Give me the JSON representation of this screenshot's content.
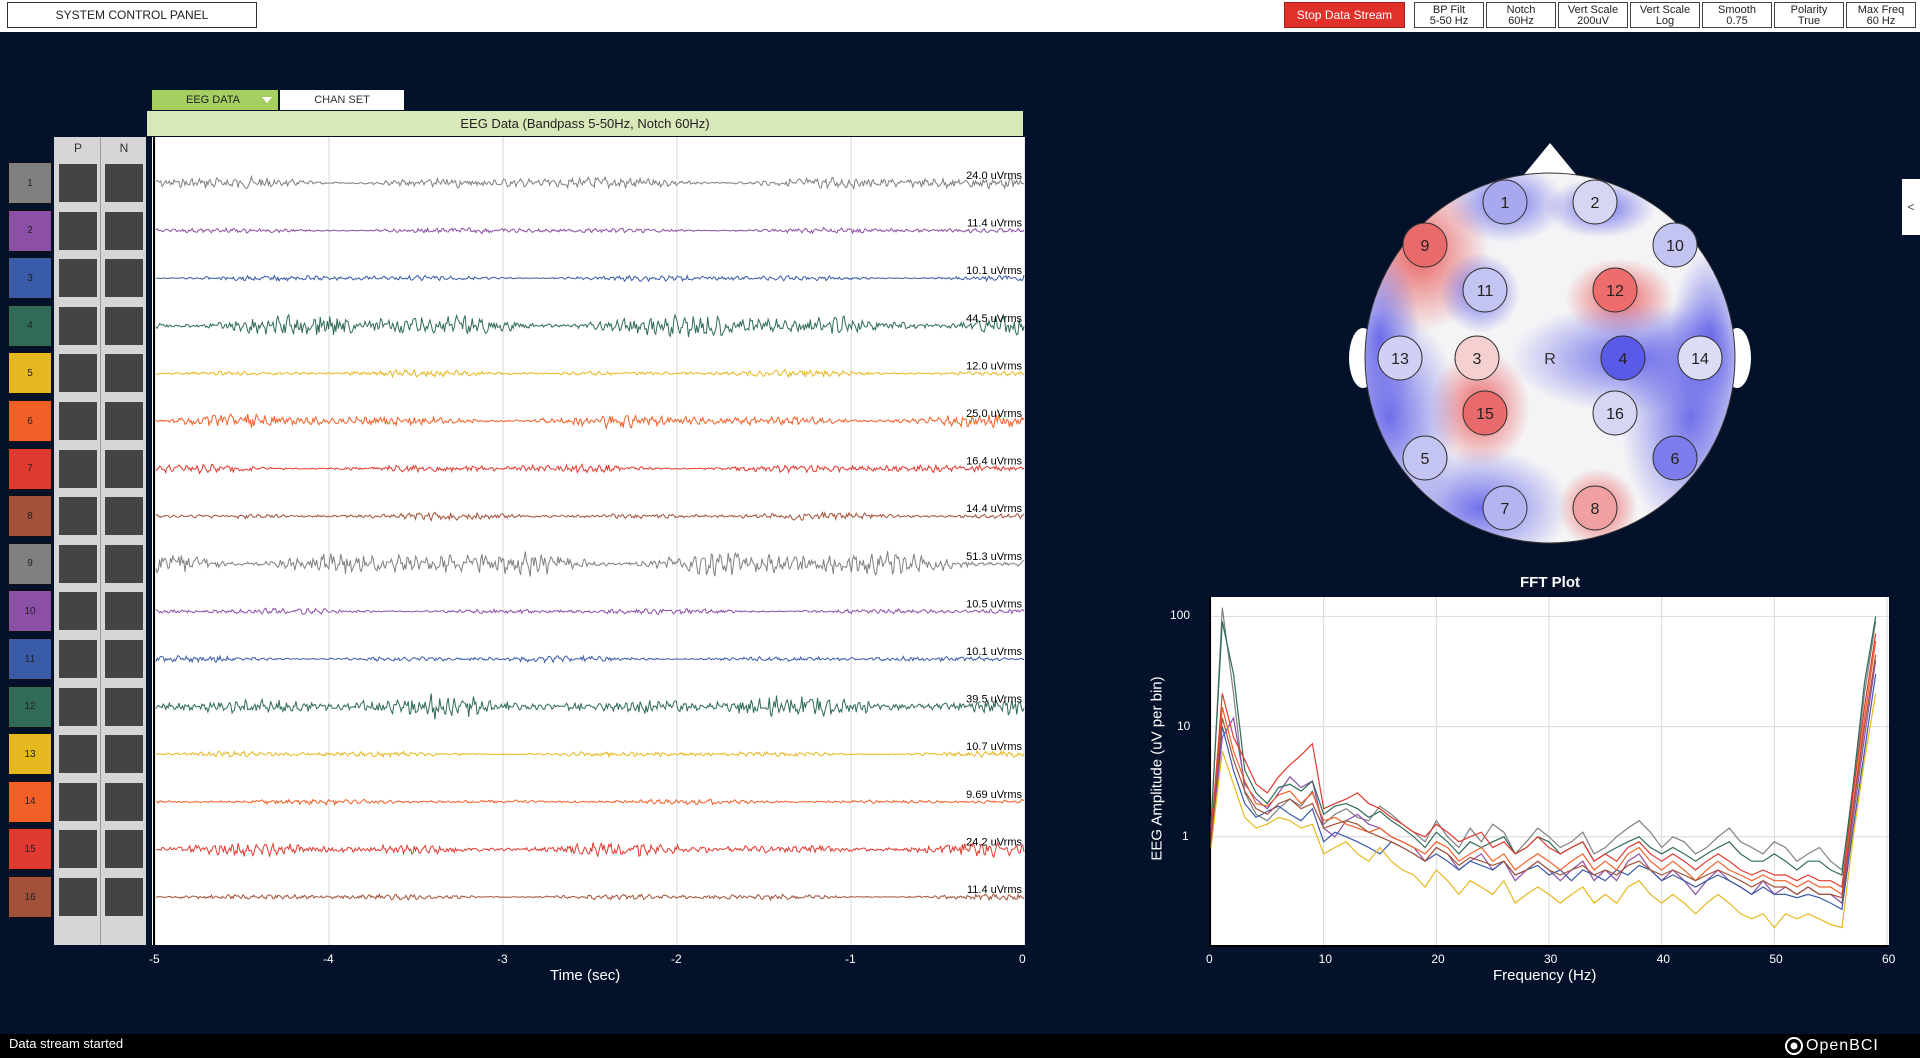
{
  "topbar": {
    "system_control": "SYSTEM CONTROL PANEL",
    "stop_stream": "Stop Data Stream",
    "buttons": [
      {
        "line1": "BP Filt",
        "line2": "5-50 Hz"
      },
      {
        "line1": "Notch",
        "line2": "60Hz"
      },
      {
        "line1": "Vert Scale",
        "line2": "200uV"
      },
      {
        "line1": "Vert Scale",
        "line2": "Log"
      },
      {
        "line1": "Smooth",
        "line2": "0.75"
      },
      {
        "line1": "Polarity",
        "line2": "True"
      },
      {
        "line1": "Max Freq",
        "line2": "60 Hz"
      }
    ]
  },
  "tabs": {
    "eeg_data": "EEG DATA",
    "chan_set": "CHAN SET"
  },
  "eeg_panel": {
    "title": "EEG Data (Bandpass 5-50Hz, Notch 60Hz)",
    "pn_headers": {
      "p": "P",
      "n": "N"
    },
    "x_axis_title": "Time (sec)",
    "x_ticks": [
      "-5",
      "-4",
      "-3",
      "-2",
      "-1",
      "0"
    ],
    "channels": [
      {
        "num": "1",
        "rms": "24.0 uVrms",
        "color": "#808080",
        "amp": 0.42
      },
      {
        "num": "2",
        "rms": "11.4 uVrms",
        "color": "#8b4fa6",
        "amp": 0.2
      },
      {
        "num": "3",
        "rms": "10.1 uVrms",
        "color": "#3a5ba8",
        "amp": 0.2
      },
      {
        "num": "4",
        "rms": "44.5 uVrms",
        "color": "#2f6b57",
        "amp": 0.8
      },
      {
        "num": "5",
        "rms": "12.0 uVrms",
        "color": "#e6b820",
        "amp": 0.22
      },
      {
        "num": "6",
        "rms": "25.0 uVrms",
        "color": "#f26028",
        "amp": 0.42
      },
      {
        "num": "7",
        "rms": "16.4 uVrms",
        "color": "#e03a30",
        "amp": 0.28
      },
      {
        "num": "8",
        "rms": "14.4 uVrms",
        "color": "#a3523a",
        "amp": 0.25
      },
      {
        "num": "9",
        "rms": "51.3 uVrms",
        "color": "#808080",
        "amp": 0.88
      },
      {
        "num": "10",
        "rms": "10.5 uVrms",
        "color": "#8b4fa6",
        "amp": 0.2
      },
      {
        "num": "11",
        "rms": "10.1 uVrms",
        "color": "#3a5ba8",
        "amp": 0.2
      },
      {
        "num": "12",
        "rms": "39.5 uVrms",
        "color": "#2f6b57",
        "amp": 0.72
      },
      {
        "num": "13",
        "rms": "10.7 uVrms",
        "color": "#e6b820",
        "amp": 0.2
      },
      {
        "num": "14",
        "rms": "9.69 uVrms",
        "color": "#f26028",
        "amp": 0.18
      },
      {
        "num": "15",
        "rms": "24.2 uVrms",
        "color": "#e03a30",
        "amp": 0.42
      },
      {
        "num": "16",
        "rms": "11.4 uVrms",
        "color": "#a3523a",
        "amp": 0.2
      }
    ]
  },
  "headplot": {
    "center_label": "R",
    "electrodes": [
      {
        "num": "1",
        "fill": "#a8a8ee"
      },
      {
        "num": "2",
        "fill": "#d6d6f4"
      },
      {
        "num": "9",
        "fill": "#e86a6a"
      },
      {
        "num": "10",
        "fill": "#c4c4f2"
      },
      {
        "num": "11",
        "fill": "#c4c4f2"
      },
      {
        "num": "12",
        "fill": "#ee6c6c"
      },
      {
        "num": "13",
        "fill": "#d0d0f4"
      },
      {
        "num": "3",
        "fill": "#f4d0d0"
      },
      {
        "num": "4",
        "fill": "#5a5ae8"
      },
      {
        "num": "14",
        "fill": "#dcdcf6"
      },
      {
        "num": "15",
        "fill": "#e86a6a"
      },
      {
        "num": "16",
        "fill": "#d6d6f4"
      },
      {
        "num": "5",
        "fill": "#c4c4f2"
      },
      {
        "num": "6",
        "fill": "#7c7cec"
      },
      {
        "num": "7",
        "fill": "#b4b4f0"
      },
      {
        "num": "8",
        "fill": "#f0a0a0"
      }
    ]
  },
  "fft": {
    "title": "FFT Plot",
    "x_axis_title": "Frequency (Hz)",
    "y_axis_title": "EEG Amplitude (uV per bin)",
    "x_ticks": [
      "0",
      "10",
      "20",
      "30",
      "40",
      "50",
      "60"
    ],
    "y_ticks": [
      "100",
      "10",
      "1"
    ]
  },
  "chart_data": {
    "type": "line",
    "title": "FFT Plot",
    "xlabel": "Frequency (Hz)",
    "ylabel": "EEG Amplitude (uV per bin)",
    "xlim": [
      0,
      60
    ],
    "ylim": [
      0.1,
      150
    ],
    "yscale": "log",
    "grid": true,
    "x": [
      0,
      1,
      2,
      3,
      4,
      5,
      6,
      7,
      8,
      9,
      10,
      11,
      12,
      13,
      14,
      15,
      16,
      17,
      18,
      19,
      20,
      21,
      22,
      23,
      24,
      25,
      26,
      27,
      28,
      29,
      30,
      31,
      32,
      33,
      34,
      35,
      36,
      37,
      38,
      39,
      40,
      41,
      42,
      43,
      44,
      45,
      46,
      47,
      48,
      49,
      50,
      51,
      52,
      53,
      54,
      55,
      56,
      57,
      58,
      59
    ],
    "series": [
      {
        "color": "#808080",
        "values": [
          1.2,
          120,
          20,
          2.5,
          1.6,
          1.4,
          1.8,
          2.2,
          1.9,
          2.6,
          1.3,
          1.6,
          1.8,
          1.5,
          1.4,
          1.9,
          1.6,
          1.3,
          1.1,
          0.9,
          1.4,
          1.0,
          0.8,
          1.2,
          0.9,
          1.3,
          1.1,
          0.7,
          0.9,
          1.2,
          1.0,
          0.8,
          0.9,
          1.1,
          0.7,
          0.8,
          1.0,
          1.2,
          1.4,
          1.1,
          0.8,
          1.0,
          0.9,
          0.7,
          0.8,
          1.0,
          1.2,
          0.9,
          0.8,
          0.7,
          0.9,
          0.8,
          0.6,
          0.7,
          0.8,
          0.6,
          0.5,
          2.5,
          20,
          90
        ]
      },
      {
        "color": "#8b4fa6",
        "values": [
          0.9,
          8,
          12,
          3.0,
          2.2,
          1.8,
          2.5,
          3.5,
          2.8,
          3.2,
          1.2,
          1.0,
          1.4,
          1.6,
          1.3,
          1.2,
          1.0,
          0.9,
          0.8,
          0.6,
          0.8,
          0.7,
          0.5,
          0.6,
          0.7,
          0.5,
          0.6,
          0.4,
          0.5,
          0.6,
          0.5,
          0.4,
          0.5,
          0.6,
          0.4,
          0.5,
          0.4,
          0.6,
          0.7,
          0.5,
          0.4,
          0.5,
          0.4,
          0.3,
          0.4,
          0.5,
          0.4,
          0.35,
          0.3,
          0.4,
          0.3,
          0.35,
          0.3,
          0.35,
          0.3,
          0.3,
          0.25,
          1.5,
          8,
          40
        ]
      },
      {
        "color": "#3a5ba8",
        "values": [
          1.0,
          10,
          4,
          2.0,
          1.5,
          1.7,
          1.9,
          1.6,
          1.4,
          1.8,
          0.9,
          1.1,
          1.0,
          0.9,
          0.8,
          0.7,
          0.9,
          0.8,
          0.7,
          0.6,
          0.7,
          0.6,
          0.5,
          0.6,
          0.55,
          0.5,
          0.6,
          0.45,
          0.5,
          0.55,
          0.45,
          0.5,
          0.4,
          0.5,
          0.45,
          0.4,
          0.5,
          0.45,
          0.55,
          0.5,
          0.4,
          0.45,
          0.4,
          0.35,
          0.4,
          0.45,
          0.4,
          0.35,
          0.3,
          0.35,
          0.3,
          0.3,
          0.28,
          0.3,
          0.28,
          0.25,
          0.22,
          1.2,
          6,
          30
        ]
      },
      {
        "color": "#2f6b57",
        "values": [
          1.3,
          90,
          30,
          4.0,
          2.5,
          2.0,
          2.8,
          3.0,
          2.6,
          3.2,
          1.6,
          1.9,
          2.0,
          1.8,
          1.5,
          1.7,
          1.4,
          1.2,
          1.0,
          0.8,
          1.1,
          0.9,
          0.7,
          0.9,
          0.8,
          0.9,
          1.0,
          0.7,
          0.8,
          1.0,
          0.9,
          0.7,
          0.8,
          0.9,
          0.6,
          0.7,
          0.8,
          0.9,
          1.0,
          0.8,
          0.7,
          0.8,
          0.7,
          0.6,
          0.7,
          0.8,
          0.9,
          0.7,
          0.6,
          0.6,
          0.7,
          0.6,
          0.5,
          0.6,
          0.6,
          0.5,
          0.45,
          3,
          25,
          100
        ]
      },
      {
        "color": "#e6b820",
        "values": [
          0.8,
          6,
          3,
          1.5,
          1.2,
          1.3,
          1.5,
          1.4,
          1.2,
          1.3,
          0.7,
          0.8,
          0.9,
          0.7,
          0.6,
          0.8,
          0.6,
          0.5,
          0.45,
          0.35,
          0.5,
          0.4,
          0.3,
          0.4,
          0.35,
          0.3,
          0.4,
          0.25,
          0.3,
          0.35,
          0.3,
          0.25,
          0.3,
          0.35,
          0.25,
          0.3,
          0.25,
          0.35,
          0.4,
          0.3,
          0.25,
          0.3,
          0.25,
          0.2,
          0.25,
          0.3,
          0.25,
          0.2,
          0.18,
          0.2,
          0.15,
          0.2,
          0.18,
          0.2,
          0.18,
          0.16,
          0.15,
          1.0,
          5,
          20
        ]
      },
      {
        "color": "#f26028",
        "values": [
          1.1,
          15,
          6,
          3.2,
          2.0,
          1.9,
          2.4,
          2.6,
          2.0,
          2.5,
          1.4,
          1.5,
          1.3,
          1.2,
          1.1,
          1.2,
          1.0,
          0.9,
          0.8,
          0.7,
          0.9,
          0.8,
          0.6,
          0.7,
          0.8,
          0.6,
          0.7,
          0.5,
          0.6,
          0.7,
          0.6,
          0.5,
          0.6,
          0.7,
          0.5,
          0.6,
          0.5,
          0.7,
          0.8,
          0.6,
          0.5,
          0.6,
          0.5,
          0.4,
          0.5,
          0.6,
          0.5,
          0.45,
          0.4,
          0.45,
          0.4,
          0.4,
          0.35,
          0.4,
          0.35,
          0.35,
          0.3,
          2,
          12,
          60
        ]
      },
      {
        "color": "#e03a30",
        "values": [
          1.0,
          20,
          8,
          5.0,
          3.0,
          2.5,
          3.5,
          4.5,
          5.5,
          7.0,
          1.8,
          2.0,
          2.2,
          2.5,
          2.0,
          1.8,
          1.5,
          1.3,
          1.1,
          1.0,
          1.3,
          1.1,
          0.9,
          1.0,
          1.1,
          0.8,
          0.9,
          0.7,
          0.8,
          1.0,
          0.8,
          0.7,
          0.8,
          0.9,
          0.6,
          0.7,
          0.6,
          0.8,
          0.9,
          0.7,
          0.6,
          0.7,
          0.6,
          0.5,
          0.6,
          0.7,
          0.6,
          0.5,
          0.45,
          0.5,
          0.45,
          0.45,
          0.4,
          0.45,
          0.4,
          0.4,
          0.35,
          2.5,
          15,
          70
        ]
      },
      {
        "color": "#a3523a",
        "values": [
          0.9,
          12,
          5,
          2.6,
          1.8,
          1.6,
          2.0,
          2.2,
          1.8,
          2.0,
          1.2,
          1.3,
          1.4,
          1.3,
          1.1,
          1.0,
          0.9,
          0.8,
          0.7,
          0.6,
          0.8,
          0.7,
          0.55,
          0.65,
          0.6,
          0.55,
          0.6,
          0.45,
          0.5,
          0.6,
          0.5,
          0.45,
          0.5,
          0.55,
          0.45,
          0.5,
          0.45,
          0.55,
          0.6,
          0.5,
          0.45,
          0.5,
          0.45,
          0.4,
          0.45,
          0.5,
          0.45,
          0.4,
          0.35,
          0.4,
          0.35,
          0.35,
          0.3,
          0.35,
          0.3,
          0.3,
          0.28,
          1.8,
          10,
          45
        ]
      }
    ]
  },
  "status": {
    "text": "Data stream started"
  },
  "logo": {
    "text": "OpenBCI"
  },
  "side_tab": {
    "label": "<"
  }
}
